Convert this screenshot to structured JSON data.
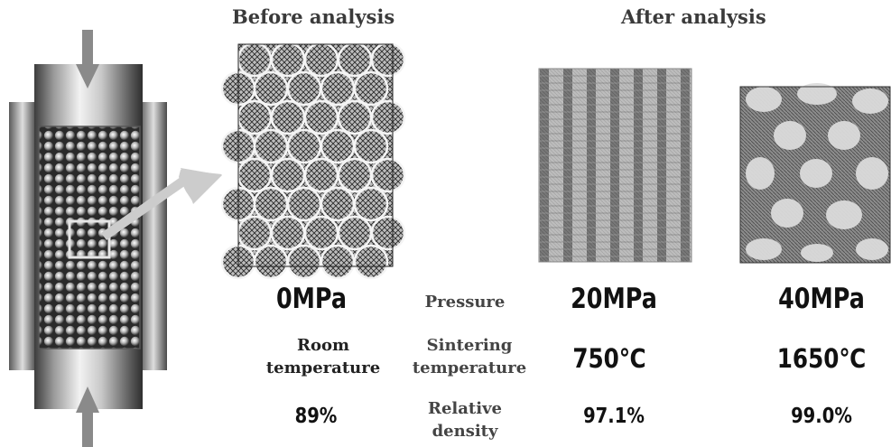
{
  "headers": {
    "before": "Before analysis",
    "after": "After analysis"
  },
  "rows": {
    "pressure": {
      "label": "Pressure",
      "values": [
        "0MPa",
        "20MPa",
        "40MPa"
      ]
    },
    "sintering": {
      "label_line1": "Sintering",
      "label_line2": "temperature",
      "values": [
        "Room",
        "temperature",
        "750℃",
        "1650℃"
      ]
    },
    "density": {
      "label_line1": "Relative",
      "label_line2": "density",
      "values": [
        "89%",
        "97.1%",
        "99.0%"
      ]
    }
  },
  "colors": {
    "text": "#111111",
    "label": "#444444",
    "arrow": "#8a8a8a",
    "pointer_arrow": "#c8c8c8"
  }
}
